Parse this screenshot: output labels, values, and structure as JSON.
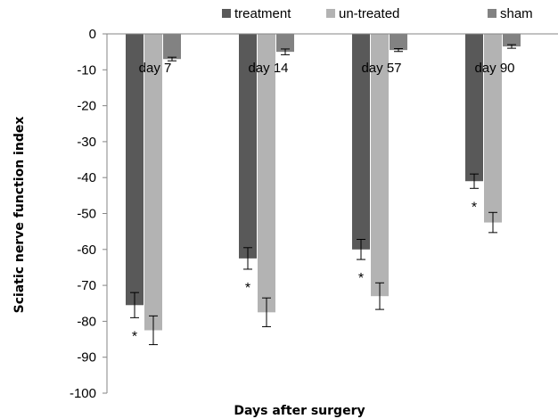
{
  "chart_data": {
    "type": "bar",
    "title": "",
    "xlabel": "Days after surgery",
    "ylabel": "Sciatic nerve function index",
    "categories": [
      "day 7",
      "day 14",
      "day 57",
      "day 90"
    ],
    "ylim": [
      -100,
      0
    ],
    "yticks": [
      0,
      -10,
      -20,
      -30,
      -40,
      -50,
      -60,
      -70,
      -80,
      -90,
      -100
    ],
    "legend_position": "top",
    "series": [
      {
        "name": "treatment",
        "color": "#595959",
        "values": [
          -75.5,
          -62.5,
          -60,
          -41
        ],
        "errors": [
          3.5,
          3,
          2.8,
          2
        ]
      },
      {
        "name": "un-treated",
        "color": "#b3b3b3",
        "values": [
          -82.5,
          -77.5,
          -73,
          -52.5
        ],
        "errors": [
          4,
          4,
          3.7,
          2.8
        ]
      },
      {
        "name": "sham",
        "color": "#828282",
        "values": [
          -7,
          -5,
          -4.5,
          -3.5
        ],
        "errors": [
          0.5,
          0.8,
          0.4,
          0.5
        ]
      }
    ],
    "significance_marker": "*",
    "significance_on_series": "treatment"
  }
}
